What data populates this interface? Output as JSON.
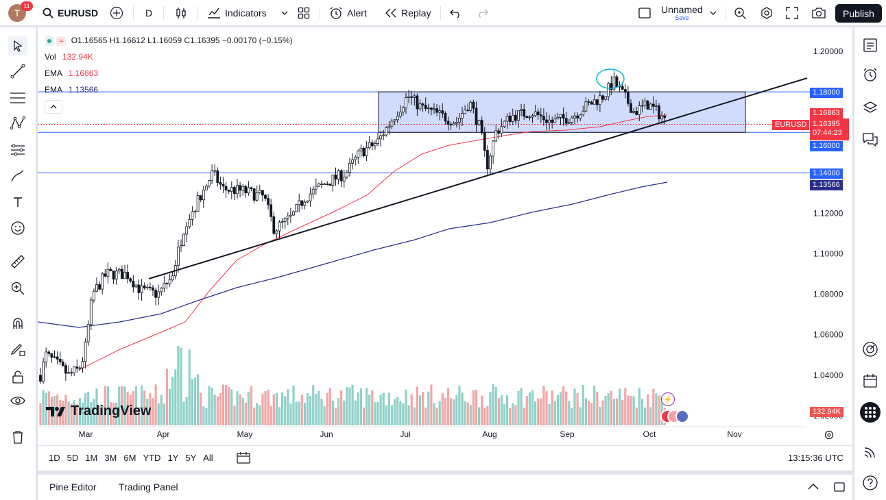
{
  "header": {
    "avatar_letter": "T",
    "notifications": "11",
    "symbol": "EURUSD",
    "interval": "D",
    "indicators_label": "Indicators",
    "alert_label": "Alert",
    "replay_label": "Replay",
    "layout_name": "Unnamed",
    "save_label": "Save",
    "publish_label": "Publish"
  },
  "legend": {
    "ohlc": "O1.16565  H1.16612  L1.16059  C1.16395  −0.00170  (−0.15%)",
    "vol_label": "Vol",
    "vol_value": "132.94K",
    "ema1_label": "EMA",
    "ema1_value": "1.16863",
    "ema2_label": "EMA",
    "ema2_value": "1.13566"
  },
  "price_axis": {
    "ticks": [
      "1.20000",
      "1.18000",
      "1.16000",
      "1.14000",
      "1.12000",
      "1.10000",
      "1.08000",
      "1.06000",
      "1.04000",
      "1.02000"
    ],
    "tags": {
      "level_118": "1.18000",
      "ema_fast": "1.16863",
      "last": "1.16395",
      "countdown": "07:44:23",
      "level_116": "1.16000",
      "level_114": "1.14000",
      "ema_slow": "1.13566",
      "symbol_tag": "EURUSD",
      "volume": "132.94K"
    }
  },
  "time_axis": {
    "labels": [
      "Mar",
      "Apr",
      "May",
      "Jun",
      "Jul",
      "Aug",
      "Sep",
      "Oct",
      "Nov"
    ]
  },
  "watermark": "TradingView",
  "bottom": {
    "ranges": [
      "1D",
      "5D",
      "1M",
      "3M",
      "6M",
      "YTD",
      "1Y",
      "5Y",
      "All"
    ],
    "clock": "13:15:36 UTC"
  },
  "panels": {
    "pine_editor": "Pine Editor",
    "trading_panel": "Trading Panel"
  },
  "colors": {
    "up": "#26a69a",
    "down": "#ef5350",
    "ema_fast": "#f23645",
    "ema_slow": "#2a2e8a",
    "accent": "#2962ff",
    "range_box": "#c5d3fb",
    "hline": "#2962ff"
  },
  "chart_data": {
    "type": "candlestick",
    "symbol": "EURUSD",
    "interval": "D",
    "ylim": [
      1.02,
      1.205
    ],
    "horizontal_levels": [
      1.18,
      1.16,
      1.14
    ],
    "range_box": {
      "top": 1.18,
      "bottom": 1.16
    },
    "series": [
      {
        "name": "EMA",
        "value": 1.16863
      },
      {
        "name": "EMA",
        "value": 1.13566
      }
    ],
    "last_close": 1.16395
  }
}
